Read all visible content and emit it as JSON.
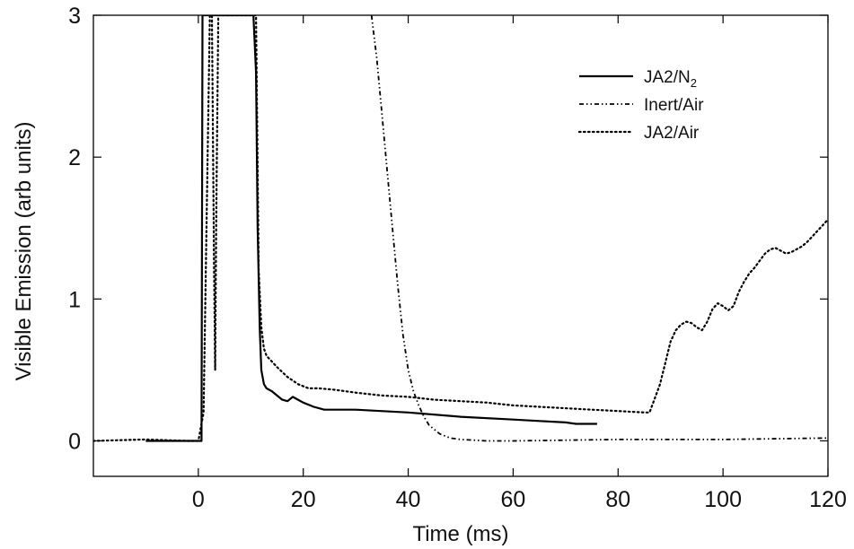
{
  "chart_data": {
    "type": "line",
    "title": "",
    "xlabel": "Time (ms)",
    "ylabel": "Visible Emission (arb units)",
    "xlim": [
      -20,
      120
    ],
    "ylim": [
      -0.25,
      3.0
    ],
    "x_ticks": [
      0,
      20,
      40,
      60,
      80,
      100,
      120
    ],
    "x_tick_labels": [
      "0",
      "20",
      "40",
      "60",
      "80",
      "100",
      "120"
    ],
    "y_ticks": [
      0,
      1,
      2,
      3
    ],
    "y_tick_labels": [
      "0",
      "1",
      "2",
      "3"
    ],
    "grid": false,
    "legend_position": "top-right",
    "legend": [
      {
        "label": "JA2/N",
        "subscript": "2",
        "series": "JA2/N2"
      },
      {
        "label": "Inert/Air",
        "subscript": "",
        "series": "Inert/Air"
      },
      {
        "label": "JA2/Air",
        "subscript": "",
        "series": "JA2/Air"
      }
    ],
    "series": [
      {
        "name": "JA2/N2",
        "style": "solid",
        "color": "#000000",
        "points": [
          [
            -10,
            0
          ],
          [
            0.2,
            0
          ],
          [
            0.6,
            0
          ],
          [
            0.8,
            3.0
          ],
          [
            1.2,
            3.0
          ],
          [
            10.5,
            3.0
          ],
          [
            11.0,
            2.6
          ],
          [
            11.3,
            1.5
          ],
          [
            11.7,
            0.8
          ],
          [
            12.0,
            0.5
          ],
          [
            12.5,
            0.4
          ],
          [
            13,
            0.37
          ],
          [
            14,
            0.35
          ],
          [
            15,
            0.32
          ],
          [
            16,
            0.29
          ],
          [
            17,
            0.28
          ],
          [
            18,
            0.31
          ],
          [
            19,
            0.29
          ],
          [
            20,
            0.27
          ],
          [
            22,
            0.24
          ],
          [
            24,
            0.22
          ],
          [
            30,
            0.22
          ],
          [
            40,
            0.2
          ],
          [
            50,
            0.17
          ],
          [
            60,
            0.15
          ],
          [
            65,
            0.14
          ],
          [
            70,
            0.13
          ],
          [
            72,
            0.12
          ],
          [
            76,
            0.12
          ]
        ]
      },
      {
        "name": "Inert/Air",
        "style": "dashdot",
        "color": "#000000",
        "points": [
          [
            33,
            3.0
          ],
          [
            34,
            2.7
          ],
          [
            35,
            2.3
          ],
          [
            36,
            1.9
          ],
          [
            37,
            1.5
          ],
          [
            38,
            1.1
          ],
          [
            39,
            0.75
          ],
          [
            40,
            0.5
          ],
          [
            41,
            0.35
          ],
          [
            42,
            0.25
          ],
          [
            43,
            0.17
          ],
          [
            44,
            0.11
          ],
          [
            46,
            0.05
          ],
          [
            48,
            0.02
          ],
          [
            50,
            0.01
          ],
          [
            55,
            0.0
          ],
          [
            60,
            0.0
          ],
          [
            80,
            0.01
          ],
          [
            100,
            0.01
          ],
          [
            120,
            0.02
          ]
        ]
      },
      {
        "name": "JA2/Air",
        "style": "dotted",
        "color": "#000000",
        "points": [
          [
            -20,
            0.0
          ],
          [
            -10,
            0.01
          ],
          [
            -2,
            0.0
          ],
          [
            0,
            0.0
          ],
          [
            1,
            0.2
          ],
          [
            2.2,
            3.0
          ],
          [
            2.6,
            3.0
          ],
          [
            3.0,
            1.2
          ],
          [
            3.2,
            0.5
          ],
          [
            3.4,
            1.5
          ],
          [
            3.8,
            3.0
          ],
          [
            11,
            3.0
          ],
          [
            11.5,
            1.2
          ],
          [
            12,
            0.8
          ],
          [
            12.5,
            0.65
          ],
          [
            13,
            0.6
          ],
          [
            15,
            0.52
          ],
          [
            17,
            0.45
          ],
          [
            19,
            0.4
          ],
          [
            21,
            0.37
          ],
          [
            23,
            0.37
          ],
          [
            26,
            0.36
          ],
          [
            30,
            0.34
          ],
          [
            35,
            0.32
          ],
          [
            40,
            0.31
          ],
          [
            45,
            0.29
          ],
          [
            50,
            0.28
          ],
          [
            55,
            0.27
          ],
          [
            60,
            0.25
          ],
          [
            65,
            0.24
          ],
          [
            70,
            0.23
          ],
          [
            75,
            0.22
          ],
          [
            80,
            0.21
          ],
          [
            85,
            0.2
          ],
          [
            86,
            0.2
          ],
          [
            87,
            0.3
          ],
          [
            88,
            0.4
          ],
          [
            89,
            0.55
          ],
          [
            90,
            0.7
          ],
          [
            91,
            0.78
          ],
          [
            92,
            0.82
          ],
          [
            93,
            0.84
          ],
          [
            94,
            0.83
          ],
          [
            95,
            0.8
          ],
          [
            96,
            0.78
          ],
          [
            97,
            0.84
          ],
          [
            98,
            0.93
          ],
          [
            99,
            0.97
          ],
          [
            100,
            0.95
          ],
          [
            101,
            0.92
          ],
          [
            102,
            0.95
          ],
          [
            103,
            1.05
          ],
          [
            104,
            1.12
          ],
          [
            105,
            1.18
          ],
          [
            106,
            1.22
          ],
          [
            107,
            1.27
          ],
          [
            108,
            1.32
          ],
          [
            109,
            1.35
          ],
          [
            110,
            1.36
          ],
          [
            111,
            1.34
          ],
          [
            112,
            1.32
          ],
          [
            113,
            1.33
          ],
          [
            114,
            1.35
          ],
          [
            115,
            1.37
          ],
          [
            116,
            1.4
          ],
          [
            117,
            1.44
          ],
          [
            118,
            1.48
          ],
          [
            119,
            1.52
          ],
          [
            120,
            1.56
          ]
        ]
      }
    ]
  }
}
